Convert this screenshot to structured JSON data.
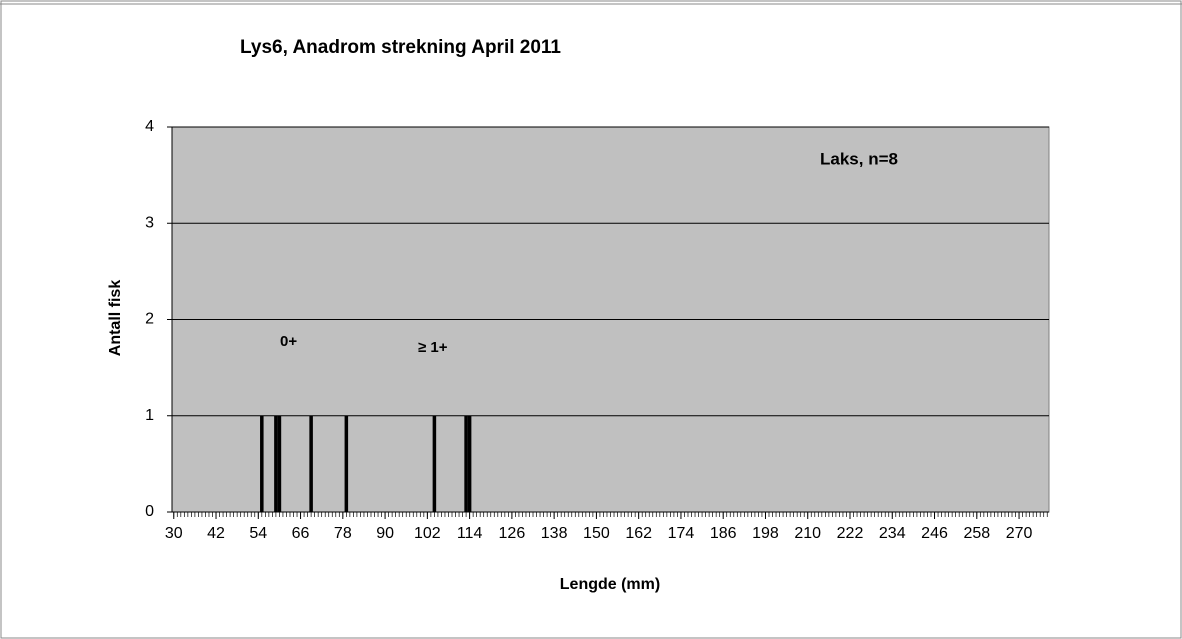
{
  "chart_data": {
    "type": "histogram-bar",
    "title": "Lys6, Anadrom strekning April 2011",
    "x_label": "Lengde (mm)",
    "y_label": "Antall fisk",
    "annotations": [
      "Laks, n=8",
      "0+",
      "≥ 1+"
    ],
    "x": [
      55,
      59,
      60,
      69,
      79,
      104,
      113,
      114
    ],
    "values": [
      1,
      1,
      1,
      1,
      1,
      1,
      1,
      1
    ],
    "color": "#000000",
    "xlim": [
      29.5,
      278.5
    ],
    "xticks": [
      30,
      42,
      54,
      66,
      78,
      90,
      102,
      114,
      126,
      138,
      150,
      162,
      174,
      186,
      198,
      210,
      222,
      234,
      246,
      258,
      270
    ],
    "ylim": [
      0,
      4
    ],
    "yticks": [
      0,
      1,
      2,
      3,
      4
    ],
    "grid": true
  }
}
